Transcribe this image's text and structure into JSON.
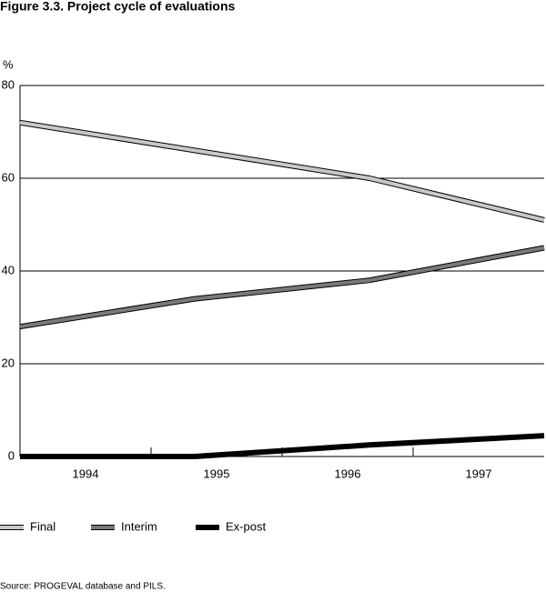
{
  "chart_data": {
    "type": "line",
    "title": "Figure 3.3.   Project cycle of evaluations",
    "y_label": "%",
    "categories": [
      "1994",
      "1995",
      "1996",
      "1997"
    ],
    "series": [
      {
        "name": "Final",
        "color": "#c8c8c8",
        "values": [
          72,
          66,
          60,
          51
        ]
      },
      {
        "name": "Interim",
        "color": "#7a7a7a",
        "values": [
          28,
          34,
          38,
          45
        ]
      },
      {
        "name": "Ex-post",
        "color": "#000000",
        "values": [
          0,
          0,
          2.5,
          4.5
        ]
      }
    ],
    "ylim": [
      0,
      80
    ],
    "yticks": [
      0,
      20,
      40,
      60,
      80
    ],
    "grid": true,
    "legend": "bottom",
    "source": "Source: PROGEVAL database and PILS."
  }
}
